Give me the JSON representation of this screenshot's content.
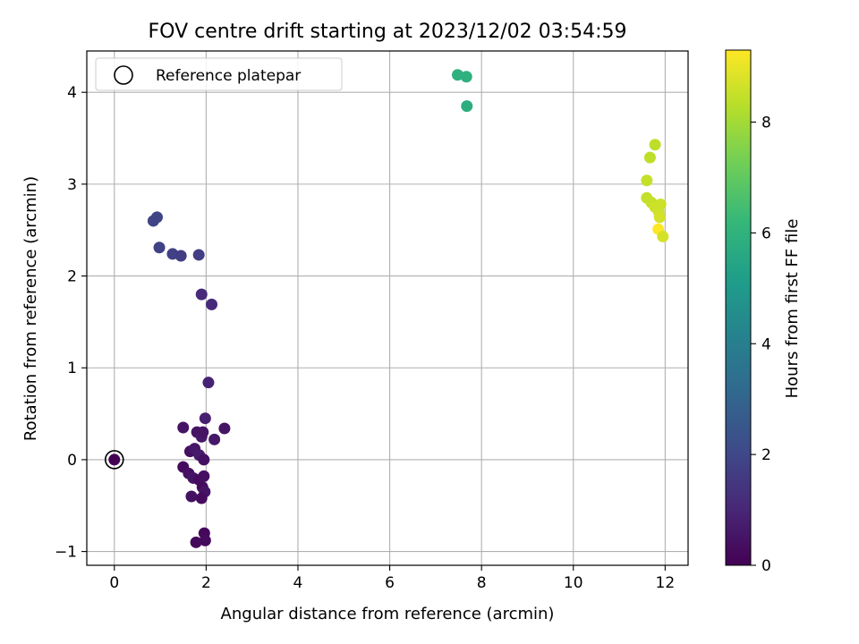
{
  "chart_data": {
    "type": "scatter",
    "title": "FOV centre drift starting at 2023/12/02 03:54:59",
    "xlabel": "Angular distance from reference (arcmin)",
    "ylabel": "Rotation from reference (arcmin)",
    "xlim": [
      -0.6,
      12.5
    ],
    "ylim": [
      -1.15,
      4.45
    ],
    "x_ticks": [
      0,
      2,
      4,
      6,
      8,
      10,
      12
    ],
    "y_ticks": [
      -1,
      0,
      1,
      2,
      3,
      4
    ],
    "grid": true,
    "legend": {
      "position": "top-left",
      "entries": [
        "Reference platepar"
      ]
    },
    "reference_point": {
      "x": 0,
      "y": 0
    },
    "colorbar": {
      "label": "Hours from first FF file",
      "colormap": "viridis",
      "min": 0,
      "max": 9.3,
      "ticks": [
        0,
        2,
        4,
        6,
        8
      ]
    },
    "points": [
      {
        "x": 0.0,
        "y": 0.0,
        "h": 0.0
      },
      {
        "x": 1.5,
        "y": 0.35,
        "h": 0.5
      },
      {
        "x": 1.65,
        "y": 0.09,
        "h": 0.4
      },
      {
        "x": 1.75,
        "y": 0.12,
        "h": 0.6
      },
      {
        "x": 1.8,
        "y": 0.3,
        "h": 0.5
      },
      {
        "x": 1.85,
        "y": 0.05,
        "h": 0.7
      },
      {
        "x": 1.9,
        "y": 0.25,
        "h": 0.6
      },
      {
        "x": 1.93,
        "y": 0.3,
        "h": 0.5
      },
      {
        "x": 1.95,
        "y": 0.0,
        "h": 0.4
      },
      {
        "x": 1.98,
        "y": 0.45,
        "h": 0.8
      },
      {
        "x": 2.05,
        "y": 0.84,
        "h": 0.9
      },
      {
        "x": 2.18,
        "y": 0.22,
        "h": 0.6
      },
      {
        "x": 2.4,
        "y": 0.34,
        "h": 0.5
      },
      {
        "x": 1.5,
        "y": -0.08,
        "h": 0.3
      },
      {
        "x": 1.62,
        "y": -0.15,
        "h": 0.4
      },
      {
        "x": 1.72,
        "y": -0.2,
        "h": 0.5
      },
      {
        "x": 1.85,
        "y": -0.22,
        "h": 0.3
      },
      {
        "x": 1.95,
        "y": -0.18,
        "h": 0.4
      },
      {
        "x": 1.92,
        "y": -0.3,
        "h": 0.3
      },
      {
        "x": 1.97,
        "y": -0.35,
        "h": 0.5
      },
      {
        "x": 1.68,
        "y": -0.4,
        "h": 0.4
      },
      {
        "x": 1.9,
        "y": -0.42,
        "h": 0.3
      },
      {
        "x": 1.96,
        "y": -0.8,
        "h": 0.2
      },
      {
        "x": 1.78,
        "y": -0.9,
        "h": 0.2
      },
      {
        "x": 1.98,
        "y": -0.88,
        "h": 0.3
      },
      {
        "x": 1.9,
        "y": 1.8,
        "h": 1.1
      },
      {
        "x": 2.12,
        "y": 1.69,
        "h": 1.1
      },
      {
        "x": 0.85,
        "y": 2.6,
        "h": 1.9
      },
      {
        "x": 0.93,
        "y": 2.64,
        "h": 1.9
      },
      {
        "x": 0.98,
        "y": 2.31,
        "h": 1.8
      },
      {
        "x": 1.27,
        "y": 2.24,
        "h": 1.8
      },
      {
        "x": 1.45,
        "y": 2.22,
        "h": 1.7
      },
      {
        "x": 1.84,
        "y": 2.23,
        "h": 1.7
      },
      {
        "x": 7.48,
        "y": 4.19,
        "h": 5.9
      },
      {
        "x": 7.67,
        "y": 4.17,
        "h": 5.9
      },
      {
        "x": 7.68,
        "y": 3.85,
        "h": 5.8
      },
      {
        "x": 11.78,
        "y": 3.43,
        "h": 8.4
      },
      {
        "x": 11.67,
        "y": 3.29,
        "h": 8.4
      },
      {
        "x": 11.6,
        "y": 3.04,
        "h": 8.5
      },
      {
        "x": 11.6,
        "y": 2.85,
        "h": 8.5
      },
      {
        "x": 11.7,
        "y": 2.8,
        "h": 8.5
      },
      {
        "x": 11.78,
        "y": 2.75,
        "h": 8.6
      },
      {
        "x": 11.9,
        "y": 2.78,
        "h": 8.6
      },
      {
        "x": 11.86,
        "y": 2.7,
        "h": 8.6
      },
      {
        "x": 11.88,
        "y": 2.64,
        "h": 8.7
      },
      {
        "x": 11.85,
        "y": 2.51,
        "h": 9.3
      },
      {
        "x": 11.95,
        "y": 2.43,
        "h": 8.7
      }
    ]
  }
}
